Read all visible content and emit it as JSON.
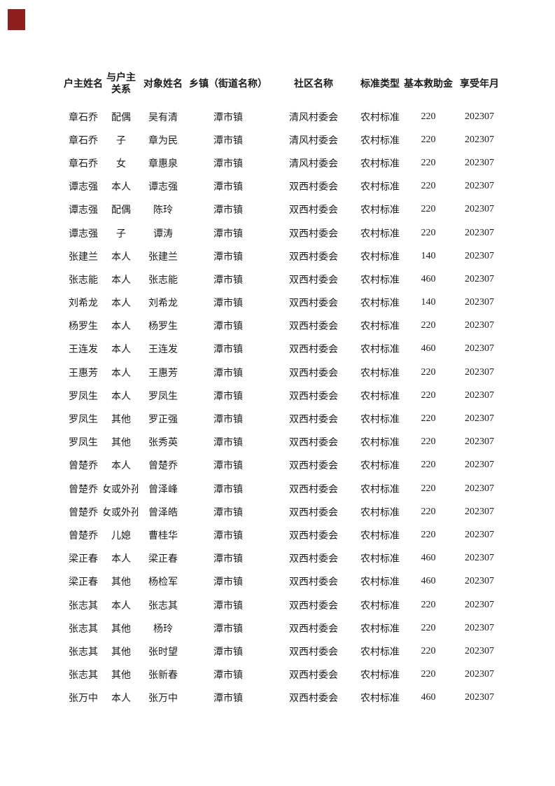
{
  "document": {
    "corner_marker_color": "#8f1e1e"
  },
  "table": {
    "headers": [
      "户主姓名",
      "与户主关系",
      "对象姓名",
      "乡镇（街道名称）",
      "社区名称",
      "标准类型",
      "基本救助金",
      "享受年月"
    ],
    "rows": [
      [
        "章石乔",
        "配偶",
        "吴有清",
        "潭市镇",
        "清风村委会",
        "农村标准",
        "220",
        "202307"
      ],
      [
        "章石乔",
        "子",
        "章为民",
        "潭市镇",
        "清风村委会",
        "农村标准",
        "220",
        "202307"
      ],
      [
        "章石乔",
        "女",
        "章惠泉",
        "潭市镇",
        "清风村委会",
        "农村标准",
        "220",
        "202307"
      ],
      [
        "谭志强",
        "本人",
        "谭志强",
        "潭市镇",
        "双西村委会",
        "农村标准",
        "220",
        "202307"
      ],
      [
        "谭志强",
        "配偶",
        "陈玲",
        "潭市镇",
        "双西村委会",
        "农村标准",
        "220",
        "202307"
      ],
      [
        "谭志强",
        "子",
        "谭涛",
        "潭市镇",
        "双西村委会",
        "农村标准",
        "220",
        "202307"
      ],
      [
        "张建兰",
        "本人",
        "张建兰",
        "潭市镇",
        "双西村委会",
        "农村标准",
        "140",
        "202307"
      ],
      [
        "张志能",
        "本人",
        "张志能",
        "潭市镇",
        "双西村委会",
        "农村标准",
        "460",
        "202307"
      ],
      [
        "刘希龙",
        "本人",
        "刘希龙",
        "潭市镇",
        "双西村委会",
        "农村标准",
        "140",
        "202307"
      ],
      [
        "杨罗生",
        "本人",
        "杨罗生",
        "潭市镇",
        "双西村委会",
        "农村标准",
        "220",
        "202307"
      ],
      [
        "王连发",
        "本人",
        "王连发",
        "潭市镇",
        "双西村委会",
        "农村标准",
        "460",
        "202307"
      ],
      [
        "王惠芳",
        "本人",
        "王惠芳",
        "潭市镇",
        "双西村委会",
        "农村标准",
        "220",
        "202307"
      ],
      [
        "罗凤生",
        "本人",
        "罗凤生",
        "潭市镇",
        "双西村委会",
        "农村标准",
        "220",
        "202307"
      ],
      [
        "罗凤生",
        "其他",
        "罗正强",
        "潭市镇",
        "双西村委会",
        "农村标准",
        "220",
        "202307"
      ],
      [
        "罗凤生",
        "其他",
        "张秀英",
        "潭市镇",
        "双西村委会",
        "农村标准",
        "220",
        "202307"
      ],
      [
        "曾楚乔",
        "本人",
        "曾楚乔",
        "潭市镇",
        "双西村委会",
        "农村标准",
        "220",
        "202307"
      ],
      [
        "曾楚乔",
        "孙子女或外孙子女",
        "曾泽峰",
        "潭市镇",
        "双西村委会",
        "农村标准",
        "220",
        "202307"
      ],
      [
        "曾楚乔",
        "孙子女或外孙子女",
        "曾泽皓",
        "潭市镇",
        "双西村委会",
        "农村标准",
        "220",
        "202307"
      ],
      [
        "曾楚乔",
        "儿媳",
        "曹桂华",
        "潭市镇",
        "双西村委会",
        "农村标准",
        "220",
        "202307"
      ],
      [
        "梁正春",
        "本人",
        "梁正春",
        "潭市镇",
        "双西村委会",
        "农村标准",
        "460",
        "202307"
      ],
      [
        "梁正春",
        "其他",
        "杨检军",
        "潭市镇",
        "双西村委会",
        "农村标准",
        "460",
        "202307"
      ],
      [
        "张志其",
        "本人",
        "张志其",
        "潭市镇",
        "双西村委会",
        "农村标准",
        "220",
        "202307"
      ],
      [
        "张志其",
        "其他",
        "杨玲",
        "潭市镇",
        "双西村委会",
        "农村标准",
        "220",
        "202307"
      ],
      [
        "张志其",
        "其他",
        "张时望",
        "潭市镇",
        "双西村委会",
        "农村标准",
        "220",
        "202307"
      ],
      [
        "张志其",
        "其他",
        "张新春",
        "潭市镇",
        "双西村委会",
        "农村标准",
        "220",
        "202307"
      ],
      [
        "张万中",
        "本人",
        "张万中",
        "潭市镇",
        "双西村委会",
        "农村标准",
        "460",
        "202307"
      ]
    ]
  }
}
